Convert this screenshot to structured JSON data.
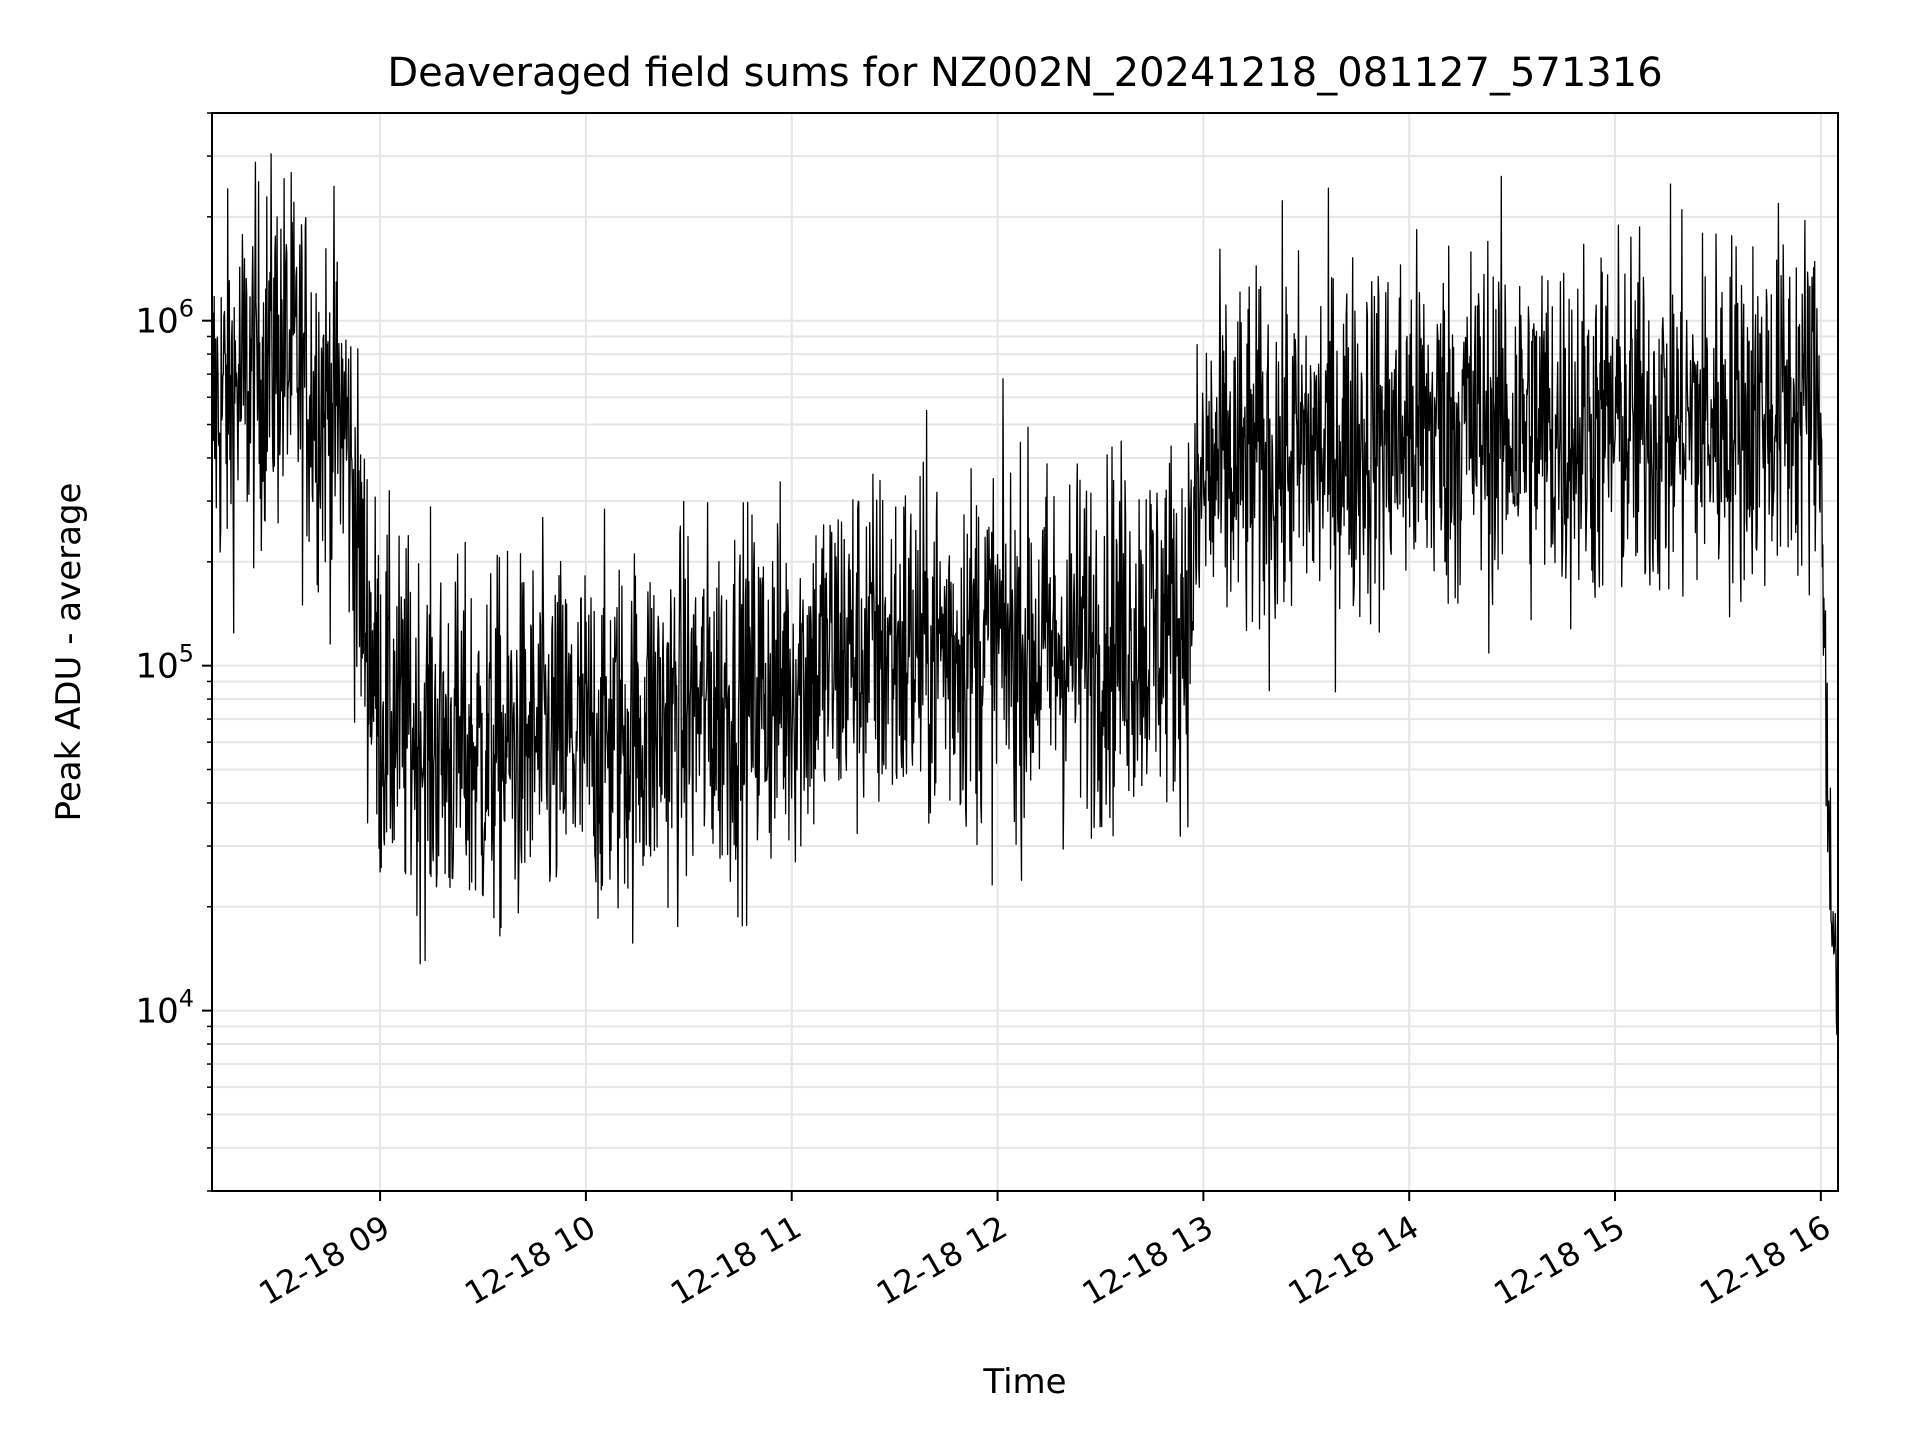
{
  "chart_data": {
    "type": "line",
    "title": "Deaveraged field sums for NZ002N_20241218_081127_571316",
    "xlabel": "Time",
    "ylabel": "Peak ADU - average",
    "x_tick_labels": [
      "12-18 09",
      "12-18 10",
      "12-18 11",
      "12-18 12",
      "12-18 13",
      "12-18 14",
      "12-18 15",
      "12-18 16"
    ],
    "x_ticks": [
      "2024-12-18 09:00",
      "2024-12-18 10:00",
      "2024-12-18 11:00",
      "2024-12-18 12:00",
      "2024-12-18 13:00",
      "2024-12-18 14:00",
      "2024-12-18 15:00",
      "2024-12-18 16:00"
    ],
    "xlim": [
      "2024-12-18 08:11",
      "2024-12-18 16:05"
    ],
    "y_scale": "log",
    "ylim": [
      3000,
      4000000
    ],
    "y_ticks": [
      {
        "value": 10000,
        "base": "10",
        "exp": "4"
      },
      {
        "value": 100000,
        "base": "10",
        "exp": "5"
      },
      {
        "value": 1000000,
        "base": "10",
        "exp": "6"
      }
    ],
    "grid": true,
    "line_color": "#000000",
    "series": [
      {
        "x": [
          "2024-12-18 08:11",
          "2024-12-18 08:20",
          "2024-12-18 08:30",
          "2024-12-18 08:40",
          "2024-12-18 08:50",
          "2024-12-18 08:55",
          "2024-12-18 09:00",
          "2024-12-18 09:15",
          "2024-12-18 09:30",
          "2024-12-18 09:45",
          "2024-12-18 10:00",
          "2024-12-18 10:15",
          "2024-12-18 10:30",
          "2024-12-18 10:45",
          "2024-12-18 11:00",
          "2024-12-18 11:15",
          "2024-12-18 11:30",
          "2024-12-18 11:45",
          "2024-12-18 12:00",
          "2024-12-18 12:15",
          "2024-12-18 12:30",
          "2024-12-18 12:45",
          "2024-12-18 12:55",
          "2024-12-18 13:00",
          "2024-12-18 13:15",
          "2024-12-18 13:30",
          "2024-12-18 13:45",
          "2024-12-18 14:00",
          "2024-12-18 14:15",
          "2024-12-18 14:30",
          "2024-12-18 14:45",
          "2024-12-18 15:00",
          "2024-12-18 15:15",
          "2024-12-18 15:30",
          "2024-12-18 15:45",
          "2024-12-18 15:55",
          "2024-12-18 16:00",
          "2024-12-18 16:02",
          "2024-12-18 16:05"
        ],
        "values": [
          550000,
          650000,
          850000,
          650000,
          500000,
          160000,
          75000,
          60000,
          55000,
          60000,
          60000,
          65000,
          75000,
          80000,
          90000,
          110000,
          110000,
          115000,
          115000,
          110000,
          120000,
          130000,
          140000,
          350000,
          380000,
          420000,
          450000,
          480000,
          500000,
          500000,
          480000,
          500000,
          500000,
          520000,
          550000,
          600000,
          550000,
          40000,
          9000
        ]
      }
    ]
  }
}
